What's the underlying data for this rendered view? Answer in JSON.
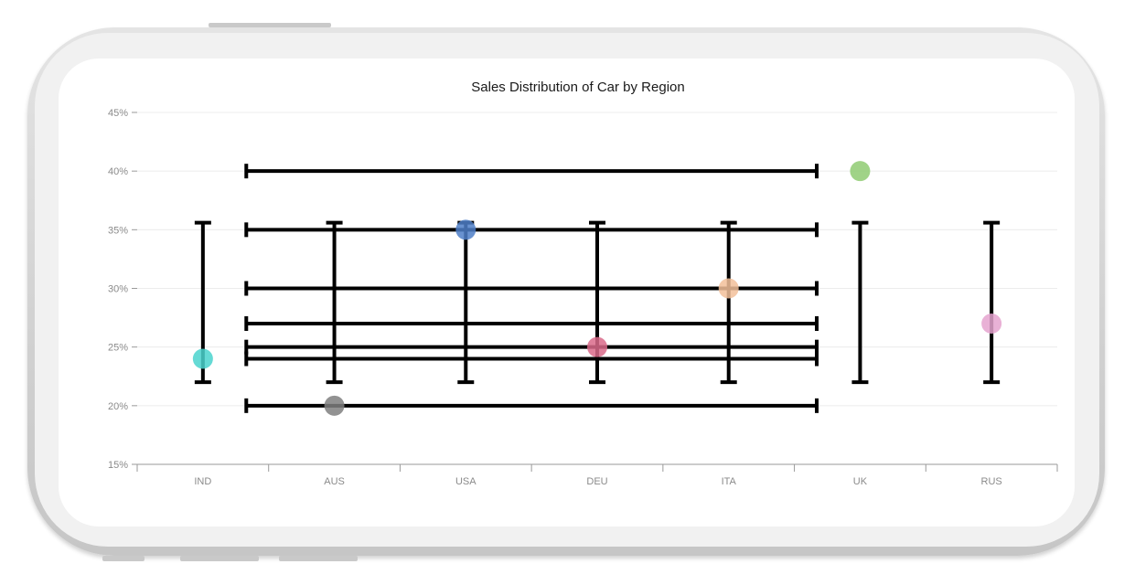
{
  "chart_data": {
    "type": "scatter",
    "title": "Sales Distribution of Car by Region",
    "categories": [
      "IND",
      "AUS",
      "USA",
      "DEU",
      "ITA",
      "UK",
      "RUS"
    ],
    "y_ticks": [
      "15%",
      "20%",
      "25%",
      "30%",
      "35%",
      "40%",
      "45%"
    ],
    "ylim": [
      15,
      45
    ],
    "grid": true,
    "points": [
      {
        "category": "IND",
        "value": 24,
        "color": "#4ad3ce"
      },
      {
        "category": "AUS",
        "value": 20,
        "color": "#7f7f7f"
      },
      {
        "category": "USA",
        "value": 35,
        "color": "#4f7fc8"
      },
      {
        "category": "DEU",
        "value": 25,
        "color": "#d96a8a"
      },
      {
        "category": "ITA",
        "value": 30,
        "color": "#f2c09a"
      },
      {
        "category": "UK",
        "value": 40,
        "color": "#8fcb72"
      },
      {
        "category": "RUS",
        "value": 27,
        "color": "#e5a3cf"
      }
    ],
    "vertical_error_bars": [
      {
        "category": "IND",
        "low": 22,
        "high": 35.6
      },
      {
        "category": "AUS",
        "low": 22,
        "high": 35.6
      },
      {
        "category": "USA",
        "low": 22,
        "high": 35.6
      },
      {
        "category": "DEU",
        "low": 22,
        "high": 35.6
      },
      {
        "category": "ITA",
        "low": 22,
        "high": 35.6
      },
      {
        "category": "UK",
        "low": 22,
        "high": 35.6
      },
      {
        "category": "RUS",
        "low": 22,
        "high": 35.6
      }
    ],
    "horizontal_error_bars": [
      {
        "value": 40,
        "from_index": 0.83,
        "to_index": 5.17
      },
      {
        "value": 35,
        "from_index": 0.83,
        "to_index": 5.17
      },
      {
        "value": 30,
        "from_index": 0.83,
        "to_index": 5.17
      },
      {
        "value": 27,
        "from_index": 0.83,
        "to_index": 5.17
      },
      {
        "value": 25,
        "from_index": 0.83,
        "to_index": 5.17
      },
      {
        "value": 24,
        "from_index": 0.83,
        "to_index": 5.17
      },
      {
        "value": 20,
        "from_index": 0.83,
        "to_index": 5.17
      }
    ],
    "error_bar_color": "#000000"
  }
}
